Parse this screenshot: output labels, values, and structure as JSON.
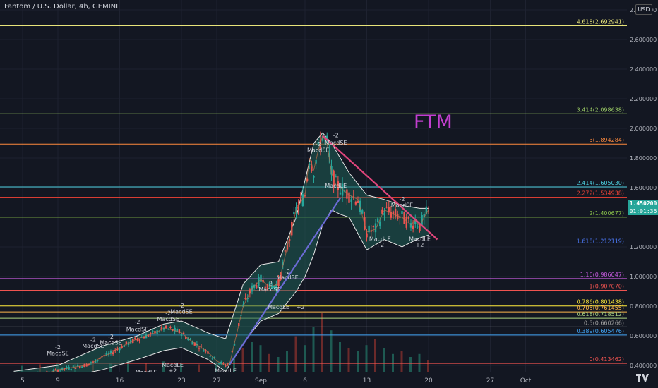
{
  "header": {
    "title": "Fantom / U.S. Dollar, 4h, GEMINI"
  },
  "currency_badge": "USD",
  "watermark": "FTM",
  "price_tag": {
    "price": "1.450200",
    "countdown": "01:01:36",
    "value": 1.4502,
    "color": "#26a69a"
  },
  "y_ticks": [
    {
      "v": 2.8,
      "label": "2.800000"
    },
    {
      "v": 2.6,
      "label": "2.600000"
    },
    {
      "v": 2.4,
      "label": "2.400000"
    },
    {
      "v": 2.2,
      "label": "2.200000"
    },
    {
      "v": 2.0,
      "label": "2.000000"
    },
    {
      "v": 1.8,
      "label": "1.800000"
    },
    {
      "v": 1.6,
      "label": "1.600000"
    },
    {
      "v": 1.2,
      "label": "1.200000"
    },
    {
      "v": 1.0,
      "label": "1.000000"
    },
    {
      "v": 0.8,
      "label": "0.800000"
    },
    {
      "v": 0.6,
      "label": "0.600000"
    },
    {
      "v": 0.4,
      "label": "0.400000"
    }
  ],
  "x_ticks": [
    {
      "d": 5,
      "label": "5"
    },
    {
      "d": 9,
      "label": "9"
    },
    {
      "d": 16,
      "label": "16"
    },
    {
      "d": 23,
      "label": "23"
    },
    {
      "d": 27,
      "label": "27"
    },
    {
      "d": 32,
      "label": "Sep"
    },
    {
      "d": 37,
      "label": "6"
    },
    {
      "d": 44,
      "label": "13"
    },
    {
      "d": 51,
      "label": "20"
    },
    {
      "d": 58,
      "label": "27"
    },
    {
      "d": 62,
      "label": "Oct"
    }
  ],
  "fib_levels": [
    {
      "v": 2.692941,
      "label": "4.618(2.692941)",
      "color": "#e8e47a"
    },
    {
      "v": 2.098638,
      "label": "3.414(2.098638)",
      "color": "#9ccc65"
    },
    {
      "v": 1.894284,
      "label": "3(1.894284)",
      "color": "#ff8a3d"
    },
    {
      "v": 1.60503,
      "label": "2.414(1.605030)",
      "color": "#4dd0e1"
    },
    {
      "v": 1.534938,
      "label": "2.272(1.534938)",
      "color": "#f44336"
    },
    {
      "v": 1.400677,
      "label": "2(1.400677)",
      "color": "#8bc34a"
    },
    {
      "v": 1.212119,
      "label": "1.618(1.212119)",
      "color": "#4f7dff"
    },
    {
      "v": 0.986047,
      "label": "1.16(0.986047)",
      "color": "#c75be0"
    },
    {
      "v": 0.90707,
      "label": "1(0.907070)",
      "color": "#ef5350"
    },
    {
      "v": 0.801438,
      "label": "0.786(0.801438)",
      "color": "#ffeb3b"
    },
    {
      "v": 0.761455,
      "label": "0.705(0.761455)",
      "color": "#ffb74d"
    },
    {
      "v": 0.718512,
      "label": "0.618(0.718512)",
      "color": "#aed581"
    },
    {
      "v": 0.660266,
      "label": "0.5(0.660266)",
      "color": "#9e9e9e"
    },
    {
      "v": 0.605476,
      "label": "0.389(0.605476)",
      "color": "#42a5f5"
    },
    {
      "v": 0.413462,
      "label": "0(0.413462)",
      "color": "#ef5350"
    }
  ],
  "chart_data": {
    "type": "line",
    "title": "Fantom / U.S. Dollar, 4h, GEMINI",
    "x_unit": "day of August (32 = Sep 1)",
    "ylim": [
      0.3,
      2.85
    ],
    "xlim": [
      3,
      64
    ],
    "series": [
      {
        "values_x": [
          4,
          6,
          8,
          9,
          10,
          12,
          13,
          14,
          15,
          16,
          17,
          18,
          19,
          20,
          21,
          22,
          23,
          24,
          25,
          26,
          27,
          28,
          28.5,
          29,
          30,
          31,
          32,
          33,
          34,
          35,
          36,
          37,
          37.5,
          38,
          38.5,
          39,
          39.5,
          40,
          40.5,
          41,
          42,
          43,
          44,
          45,
          46,
          47,
          48,
          49,
          49.5,
          50,
          50.5,
          51
        ],
        "values_y": [
          0.33,
          0.34,
          0.35,
          0.37,
          0.38,
          0.4,
          0.42,
          0.46,
          0.48,
          0.52,
          0.55,
          0.58,
          0.6,
          0.62,
          0.65,
          0.64,
          0.62,
          0.57,
          0.53,
          0.49,
          0.43,
          0.4,
          0.42,
          0.55,
          0.8,
          0.92,
          0.98,
          0.93,
          0.95,
          1.2,
          1.45,
          1.55,
          1.8,
          1.72,
          1.85,
          1.95,
          1.9,
          1.7,
          1.62,
          1.6,
          1.55,
          1.52,
          1.3,
          1.32,
          1.45,
          1.42,
          1.4,
          1.35,
          1.38,
          1.34,
          1.4,
          1.45
        ]
      },
      {
        "name": "Bollinger upper",
        "values_x": [
          4,
          9,
          14,
          18,
          21,
          23,
          26,
          28,
          30,
          32,
          34,
          36,
          37,
          38,
          39,
          40,
          41,
          42,
          44,
          46,
          48,
          50,
          51
        ],
        "values_y": [
          0.36,
          0.4,
          0.53,
          0.6,
          0.68,
          0.7,
          0.62,
          0.58,
          0.95,
          1.08,
          1.1,
          1.4,
          1.65,
          1.9,
          1.97,
          1.9,
          1.8,
          1.7,
          1.55,
          1.52,
          1.48,
          1.46,
          1.46
        ]
      },
      {
        "name": "Bollinger lower",
        "values_x": [
          4,
          9,
          14,
          18,
          21,
          23,
          26,
          28,
          30,
          32,
          34,
          36,
          37,
          38,
          39,
          40,
          41,
          42,
          44,
          46,
          48,
          50,
          51
        ],
        "values_y": [
          0.3,
          0.31,
          0.37,
          0.44,
          0.5,
          0.52,
          0.44,
          0.36,
          0.55,
          0.7,
          0.75,
          0.9,
          1.0,
          1.15,
          1.35,
          1.45,
          1.42,
          1.4,
          1.18,
          1.25,
          1.2,
          1.26,
          1.28
        ]
      }
    ],
    "trendlines": [
      {
        "from": [
          28.5,
          0.41
        ],
        "to": [
          41,
          1.53
        ],
        "color": "#6b6bd6"
      },
      {
        "from": [
          39,
          1.95
        ],
        "to": [
          52,
          1.25
        ],
        "color": "#e0457b"
      }
    ],
    "volume_x": [
      5,
      7,
      9,
      11,
      13,
      15,
      17,
      19,
      21,
      23,
      25,
      27,
      29,
      30,
      31,
      32,
      33,
      34,
      35,
      36,
      37,
      38,
      39,
      40,
      41,
      42,
      43,
      44,
      45,
      46,
      47,
      48,
      49,
      50,
      51
    ],
    "volume": [
      0.2,
      0.25,
      0.3,
      0.25,
      0.35,
      0.3,
      0.4,
      0.3,
      0.35,
      0.3,
      0.25,
      0.3,
      0.5,
      0.8,
      1.0,
      0.9,
      0.6,
      0.5,
      0.7,
      1.2,
      0.9,
      1.5,
      2.0,
      1.4,
      1.0,
      0.8,
      0.7,
      0.9,
      1.1,
      0.8,
      0.6,
      0.7,
      0.5,
      0.6,
      0.4
    ],
    "annotations": [
      {
        "x": 9,
        "y": 0.47,
        "text": "MacdSE",
        "color": "#d1d4dc"
      },
      {
        "x": 9,
        "y": 0.51,
        "text": "-2",
        "color": "#d1d4dc"
      },
      {
        "x": 13,
        "y": 0.52,
        "text": "MacdSE",
        "color": "#d1d4dc"
      },
      {
        "x": 13,
        "y": 0.56,
        "text": "-2",
        "color": "#d1d4dc"
      },
      {
        "x": 15,
        "y": 0.54,
        "text": "MacdSE",
        "color": "#d1d4dc"
      },
      {
        "x": 15,
        "y": 0.58,
        "text": "-2",
        "color": "#d1d4dc"
      },
      {
        "x": 18,
        "y": 0.63,
        "text": "MacdSE",
        "color": "#d1d4dc"
      },
      {
        "x": 18,
        "y": 0.68,
        "text": "-2",
        "color": "#d1d4dc"
      },
      {
        "x": 21.5,
        "y": 0.7,
        "text": "MacdSE",
        "color": "#d1d4dc"
      },
      {
        "x": 21.5,
        "y": 0.74,
        "text": "-2",
        "color": "#d1d4dc"
      },
      {
        "x": 23,
        "y": 0.75,
        "text": "MacdSE",
        "color": "#d1d4dc"
      },
      {
        "x": 23,
        "y": 0.79,
        "text": "-2",
        "color": "#d1d4dc"
      },
      {
        "x": 19,
        "y": 0.34,
        "text": "MacdLE",
        "color": "#d1d4dc"
      },
      {
        "x": 22,
        "y": 0.39,
        "text": "MacdLE",
        "color": "#d1d4dc"
      },
      {
        "x": 22,
        "y": 0.35,
        "text": "+2",
        "color": "#d1d4dc"
      },
      {
        "x": 28,
        "y": 0.35,
        "text": "MacdLE",
        "color": "#d1d4dc"
      },
      {
        "x": 33,
        "y": 0.9,
        "text": "MacdSE",
        "color": "#d1d4dc"
      },
      {
        "x": 33,
        "y": 0.94,
        "text": "-2",
        "color": "#d1d4dc"
      },
      {
        "x": 35,
        "y": 0.98,
        "text": "MacdSE",
        "color": "#d1d4dc"
      },
      {
        "x": 35,
        "y": 1.02,
        "text": "-2",
        "color": "#d1d4dc"
      },
      {
        "x": 34,
        "y": 0.78,
        "text": "MacdLE",
        "color": "#d1d4dc"
      },
      {
        "x": 36.5,
        "y": 0.78,
        "text": "+2",
        "color": "#d1d4dc"
      },
      {
        "x": 38.5,
        "y": 1.84,
        "text": "MacdSE",
        "color": "#d1d4dc"
      },
      {
        "x": 38.5,
        "y": 1.88,
        "text": "-2",
        "color": "#d1d4dc"
      },
      {
        "x": 40.5,
        "y": 1.89,
        "text": "MacdSE",
        "color": "#d1d4dc"
      },
      {
        "x": 40.5,
        "y": 1.94,
        "text": "-2",
        "color": "#d1d4dc"
      },
      {
        "x": 40.5,
        "y": 1.6,
        "text": "MacdLE",
        "color": "#d1d4dc"
      },
      {
        "x": 48,
        "y": 1.47,
        "text": "MacdSE",
        "color": "#d1d4dc"
      },
      {
        "x": 48,
        "y": 1.51,
        "text": "-2",
        "color": "#d1d4dc"
      },
      {
        "x": 45.5,
        "y": 1.24,
        "text": "MacdLE",
        "color": "#d1d4dc"
      },
      {
        "x": 45.5,
        "y": 1.2,
        "text": "+2",
        "color": "#d1d4dc"
      },
      {
        "x": 50,
        "y": 1.24,
        "text": "MacdLE",
        "color": "#d1d4dc"
      },
      {
        "x": 50,
        "y": 1.2,
        "text": "+2",
        "color": "#d1d4dc"
      }
    ]
  },
  "icons": {
    "logo": "tradingview-logo-icon"
  },
  "colors": {
    "background": "#131722",
    "up": "#26a69a",
    "down": "#ef5350",
    "band_fill": "#1f5f55",
    "band_stroke": "#e8e8e8",
    "watermark": "#c33fd0"
  }
}
